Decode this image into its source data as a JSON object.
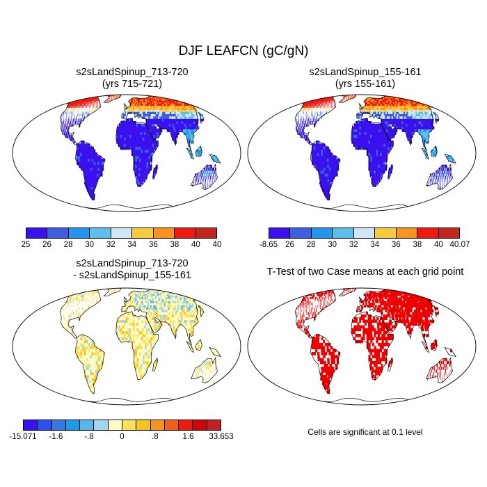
{
  "title": "DJF LEAFCN (gC/gN)",
  "panels": [
    {
      "id": "case1",
      "title_line1": "s2sLandSpinup_713-720",
      "title_line2": "(yrs 715-721)",
      "field": "abs",
      "colorbar": {
        "colors": [
          "#3a10ee",
          "#3d5fe0",
          "#2497ec",
          "#5cbfea",
          "#cfe8f5",
          "#f8cb3a",
          "#f6941d",
          "#ee1a10",
          "#c4251c"
        ],
        "labels": [
          "25",
          "26",
          "28",
          "30",
          "32",
          "34",
          "36",
          "38",
          "40",
          "40"
        ]
      }
    },
    {
      "id": "case2",
      "title_line1": "s2sLandSpinup_155-161",
      "title_line2": "(yrs 155-161)",
      "field": "abs",
      "colorbar": {
        "colors": [
          "#3a10ee",
          "#3d5fe0",
          "#2497ec",
          "#5cbfea",
          "#cfe8f5",
          "#f8cb3a",
          "#f6941d",
          "#ee1a10",
          "#c4251c"
        ],
        "labels": [
          "-8.65",
          "26",
          "28",
          "30",
          "32",
          "34",
          "36",
          "38",
          "40",
          "40.07"
        ]
      }
    },
    {
      "id": "diff",
      "title_line1": "s2sLandSpinup_713-720",
      "title_line2": "- s2sLandSpinup_155-161",
      "field": "diff",
      "colorbar": {
        "colors": [
          "#3a10ee",
          "#2c4ff0",
          "#3478e0",
          "#1b9be6",
          "#58b6ec",
          "#a0d6f2",
          "#fffdc5",
          "#fbe15a",
          "#f8c221",
          "#f5951d",
          "#f06019",
          "#ea1d0d",
          "#d0030c",
          "#c41f22"
        ],
        "labels": [
          "-15.071",
          "-1.6",
          "-.8",
          "0",
          ".8",
          "1.6",
          "33.653"
        ]
      }
    },
    {
      "id": "ttest",
      "title_line1": "T-Test of two Case means at each grid point",
      "field": "ttest",
      "note": "Cells are significant at 0.1 level"
    }
  ]
}
